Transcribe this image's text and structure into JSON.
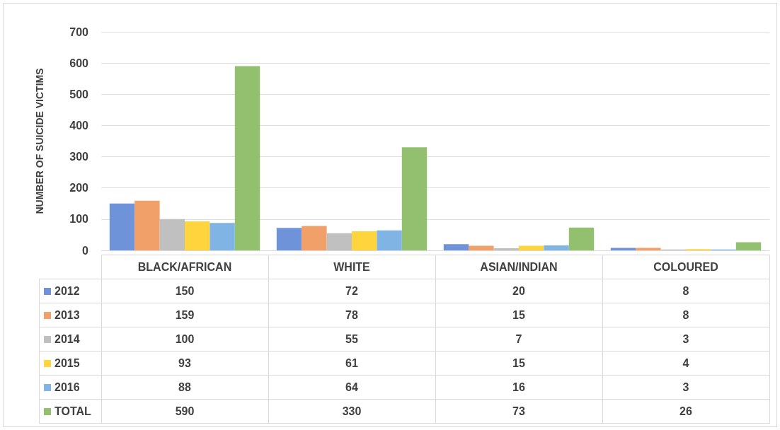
{
  "chart_data": {
    "type": "bar",
    "ylabel": "NUMBER OF SUICIDE VICTIMS",
    "categories": [
      "BLACK/AFRICAN",
      "WHITE",
      "ASIAN/INDIAN",
      "COLOURED"
    ],
    "series": [
      {
        "name": "2012",
        "color": "#6f93d8",
        "values": [
          150,
          72,
          20,
          8
        ]
      },
      {
        "name": "2013",
        "color": "#f0a068",
        "values": [
          159,
          78,
          15,
          8
        ]
      },
      {
        "name": "2014",
        "color": "#c0c0c0",
        "values": [
          100,
          55,
          7,
          3
        ]
      },
      {
        "name": "2015",
        "color": "#ffd43c",
        "values": [
          93,
          61,
          15,
          4
        ]
      },
      {
        "name": "2016",
        "color": "#80b4e4",
        "values": [
          88,
          64,
          16,
          3
        ]
      },
      {
        "name": "TOTAL",
        "color": "#92c06f",
        "values": [
          590,
          330,
          73,
          26
        ]
      }
    ],
    "ylim": [
      0,
      700
    ],
    "yticks": [
      0,
      100,
      200,
      300,
      400,
      500,
      600,
      700
    ],
    "grid": "y",
    "legend": "bottom",
    "data_labels": true
  }
}
